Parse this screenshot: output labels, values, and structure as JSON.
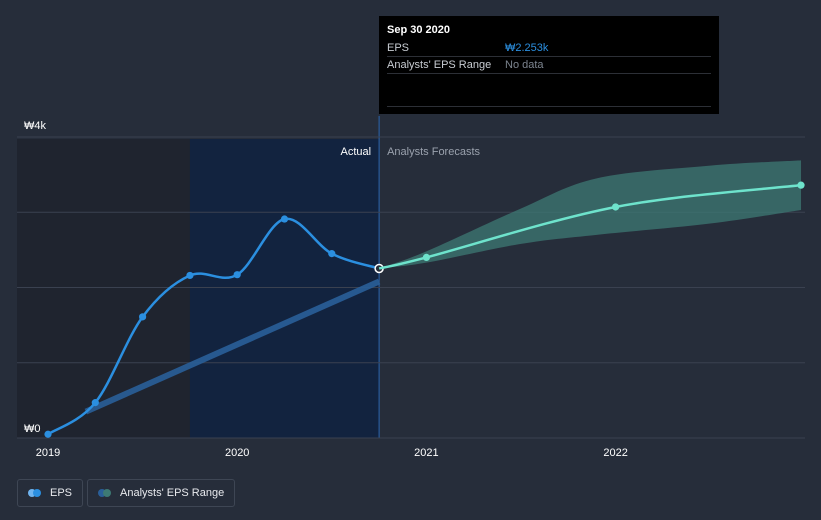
{
  "colors": {
    "eps": "#2b8fe0",
    "forecast": "#6ee3cc",
    "range_band": "#3d7a74",
    "actual_band": "#12233f",
    "grid": "#3a4150",
    "text": "#ffffff",
    "muted": "#9aa1ad"
  },
  "tooltip": {
    "date": "Sep 30 2020",
    "rows": [
      {
        "label": "EPS",
        "value": "₩2.253k",
        "value_color": "#2b8fe0"
      },
      {
        "label": "Analysts' EPS Range",
        "value": "No data",
        "value_color": "#7d8590"
      }
    ]
  },
  "labels": {
    "actual": "Actual",
    "forecast": "Analysts Forecasts"
  },
  "legend": {
    "eps": "EPS",
    "range": "Analysts' EPS Range"
  },
  "chart_data": {
    "type": "line",
    "y_tick_labels": [
      "₩4k",
      "₩0"
    ],
    "ylim": [
      0,
      4000
    ],
    "x_tick_labels": [
      "2019",
      "2020",
      "2021",
      "2022"
    ],
    "xlim": [
      2019.0,
      2022.98
    ],
    "grid": true,
    "series": [
      {
        "key": "eps",
        "x": [
          2019.0,
          2019.25,
          2019.5,
          2019.75,
          2020.0,
          2020.25,
          2020.5,
          2020.75
        ],
        "y": [
          50,
          470,
          1610,
          2160,
          2170,
          2910,
          2450,
          2253
        ]
      },
      {
        "key": "forecast",
        "x": [
          2020.75,
          2021.0,
          2022.0,
          2022.98
        ],
        "y": [
          2253,
          2400,
          3070,
          3360
        ]
      }
    ],
    "forecast_range": {
      "x": [
        2020.75,
        2021.0,
        2021.5,
        2021.9,
        2022.5,
        2022.98
      ],
      "low": [
        2253,
        2330,
        2580,
        2700,
        2850,
        3030
      ],
      "high": [
        2253,
        2480,
        3050,
        3450,
        3620,
        3690
      ]
    },
    "historical_range_line": {
      "x": [
        2019.2,
        2020.75
      ],
      "y": [
        350,
        2080
      ]
    },
    "actual_until": 2020.75
  }
}
